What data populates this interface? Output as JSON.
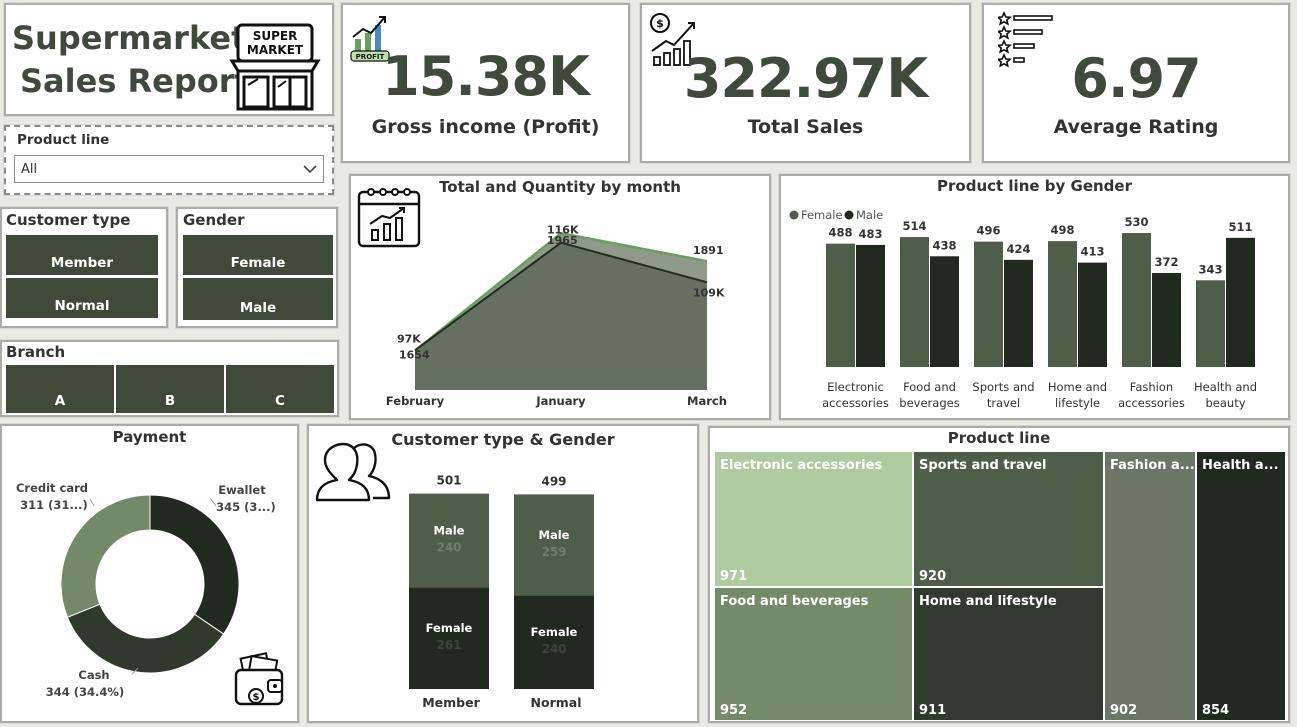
{
  "report": {
    "title_line1": "Supermarket",
    "title_line2": "Sales Report",
    "store_sign_line1": "SUPER",
    "store_sign_line2": "MARKET"
  },
  "kpis": {
    "gross_income": {
      "value": "15.38K",
      "label": "Gross income (Profit)",
      "badge": "PROFIT"
    },
    "total_sales": {
      "value": "322.97K",
      "label": "Total Sales"
    },
    "avg_rating": {
      "value": "6.97",
      "label": "Average Rating"
    }
  },
  "filters": {
    "product_line": {
      "title": "Product line",
      "selected": "All"
    },
    "customer_type": {
      "title": "Customer type",
      "options": [
        "Member",
        "Normal"
      ]
    },
    "gender": {
      "title": "Gender",
      "options": [
        "Female",
        "Male"
      ]
    },
    "branch": {
      "title": "Branch",
      "options": [
        "A",
        "B",
        "C"
      ]
    }
  },
  "colors": {
    "dark": "#202a1f",
    "mid": "#4f5e48",
    "olive": "#3f4b38",
    "light": "#adcb9f",
    "sage": "#728a68",
    "line": "#66a05e"
  },
  "chart_data": [
    {
      "id": "month",
      "type": "area",
      "title": "Total and Quantity by month",
      "categories": [
        "February",
        "January",
        "March"
      ],
      "series": [
        {
          "values": [
            97000,
            116000,
            109000
          ],
          "labels": [
            "97K",
            "116K",
            "109K"
          ]
        },
        {
          "values": [
            1654,
            1965,
            1891
          ],
          "labels": [
            "1654",
            "1965",
            "1891"
          ]
        }
      ]
    },
    {
      "id": "gender_product",
      "type": "bar",
      "title": "Product line by Gender",
      "legend_position": "top-left",
      "categories": [
        "Electronic\naccessories",
        "Food and\nbeverages",
        "Sports and\ntravel",
        "Home and\nlifestyle",
        "Fashion\naccessories",
        "Health and\nbeauty"
      ],
      "series": [
        {
          "name": "Female",
          "values": [
            488,
            514,
            496,
            498,
            530,
            343
          ]
        },
        {
          "name": "Male",
          "values": [
            483,
            438,
            424,
            413,
            372,
            511
          ]
        }
      ]
    },
    {
      "id": "payment",
      "type": "pie",
      "title": "Payment",
      "slices": [
        {
          "label": "Ewallet",
          "value": 345,
          "text": "345 (3...)"
        },
        {
          "label": "Cash",
          "value": 344,
          "text": "344 (34.4%)"
        },
        {
          "label": "Credit card",
          "value": 311,
          "text": "311 (31...)"
        }
      ]
    },
    {
      "id": "cust_gender",
      "type": "bar",
      "title": "Customer type & Gender",
      "categories": [
        "Member",
        "Normal"
      ],
      "totals": [
        501,
        499
      ],
      "series": [
        {
          "name": "Female",
          "values": [
            261,
            240
          ]
        },
        {
          "name": "Male",
          "values": [
            240,
            259
          ]
        }
      ]
    },
    {
      "id": "product_tree",
      "type": "heatmap",
      "title": "Product line",
      "items": [
        {
          "label": "Electronic accessories",
          "value": 971
        },
        {
          "label": "Food and beverages",
          "value": 952
        },
        {
          "label": "Sports and travel",
          "value": 920
        },
        {
          "label": "Home and lifestyle",
          "value": 911
        },
        {
          "label": "Fashion a...",
          "value": 902
        },
        {
          "label": "Health a...",
          "value": 854
        }
      ]
    }
  ]
}
